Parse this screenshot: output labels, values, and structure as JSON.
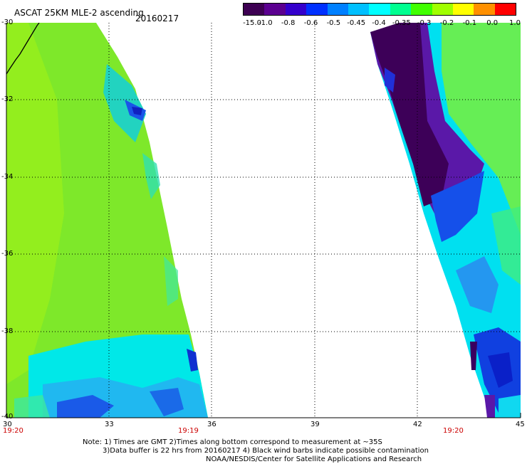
{
  "header": {
    "title": "ASCAT 25KM MLE-2 ascending",
    "date": "20160217"
  },
  "colorbar": {
    "labels": [
      "-15.0",
      "-1.0",
      "-0.8",
      "-0.6",
      "-0.5",
      "-0.45",
      "-0.4",
      "-0.35",
      "-0.3",
      "-0.2",
      "-0.1",
      "0.0",
      "1.0"
    ],
    "colors": [
      "#3d0052",
      "#5b0090",
      "#3400cc",
      "#0030ff",
      "#0080ff",
      "#00c0ff",
      "#00ffff",
      "#00ff90",
      "#40ff00",
      "#a0ff00",
      "#ffff00",
      "#ff9000",
      "#ff0000"
    ]
  },
  "map": {
    "lon_ticks": [
      "30",
      "33",
      "36",
      "39",
      "42",
      "45"
    ],
    "lat_ticks": [
      "-30",
      "-32",
      "-34",
      "-36",
      "-38",
      "-40"
    ],
    "lon_range": [
      30,
      45
    ],
    "lat_range": [
      -40,
      -30
    ],
    "swath_times": [
      "19:20",
      "19:19",
      "19:20"
    ]
  },
  "footer": {
    "line1": "Note: 1) Times are GMT 2)Times along bottom correspond to measurement at ~35S",
    "line2": "3)Data buffer is 22 hrs from 20160217 4) Black wind barbs indicate possible contamination",
    "line3": "NOAA/NESDIS/Center for Satellite Applications and Research"
  }
}
